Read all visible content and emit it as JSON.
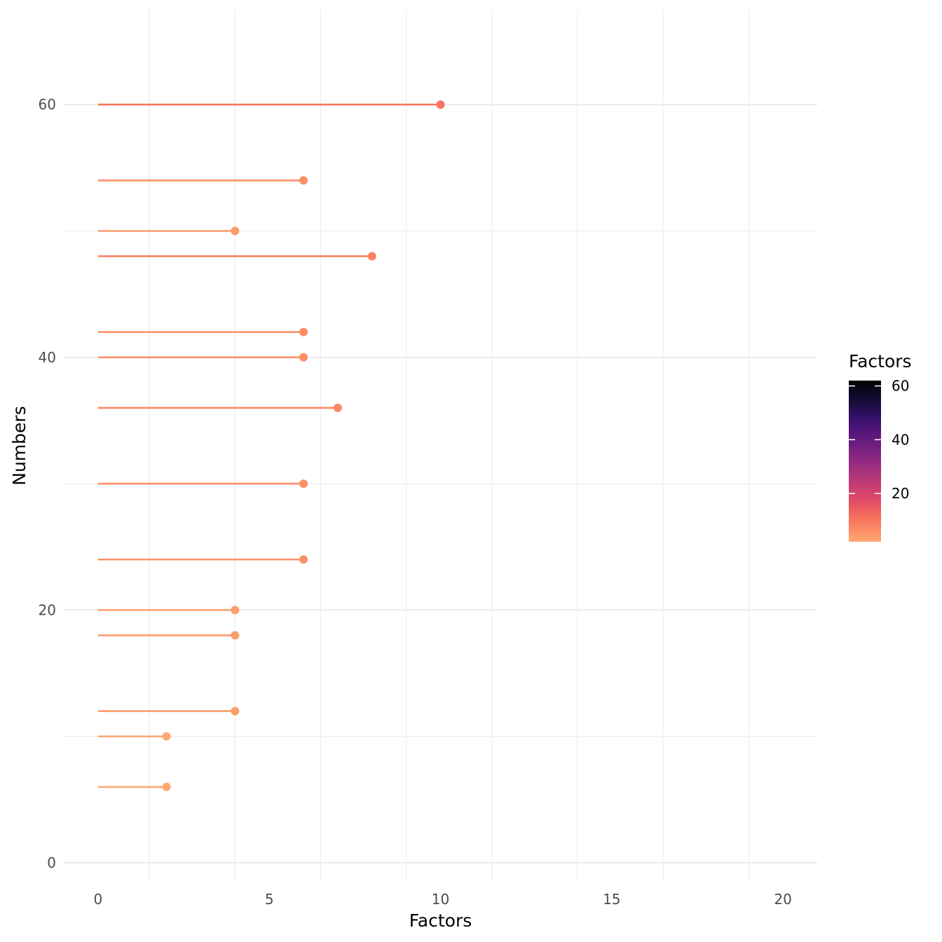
{
  "chart_data": {
    "type": "lollipop",
    "xlabel": "Factors",
    "ylabel": "Numbers",
    "xlim": [
      -1,
      21
    ],
    "ylim": [
      -1.5,
      67.5
    ],
    "x_ticks": [
      0,
      5,
      10,
      15,
      20
    ],
    "x_tick_labels": [
      "0",
      "5",
      "10",
      "15",
      "20"
    ],
    "y_ticks": [
      0,
      20,
      40,
      60
    ],
    "y_tick_labels": [
      "0",
      "20",
      "40",
      "60"
    ],
    "points": [
      {
        "y": 6,
        "x": 2
      },
      {
        "y": 10,
        "x": 2
      },
      {
        "y": 12,
        "x": 4
      },
      {
        "y": 18,
        "x": 4
      },
      {
        "y": 20,
        "x": 4
      },
      {
        "y": 24,
        "x": 6
      },
      {
        "y": 30,
        "x": 6
      },
      {
        "y": 36,
        "x": 7
      },
      {
        "y": 40,
        "x": 6
      },
      {
        "y": 42,
        "x": 6
      },
      {
        "y": 48,
        "x": 8
      },
      {
        "y": 50,
        "x": 4
      },
      {
        "y": 54,
        "x": 6
      },
      {
        "y": 60,
        "x": 10
      }
    ],
    "legend": {
      "title": "Factors",
      "ticks": [
        20,
        40,
        60
      ],
      "tick_labels": [
        "20",
        "40",
        "60"
      ],
      "range": [
        2,
        62
      ],
      "palette": "magma (reversed)",
      "position": "right"
    },
    "grid": true
  }
}
